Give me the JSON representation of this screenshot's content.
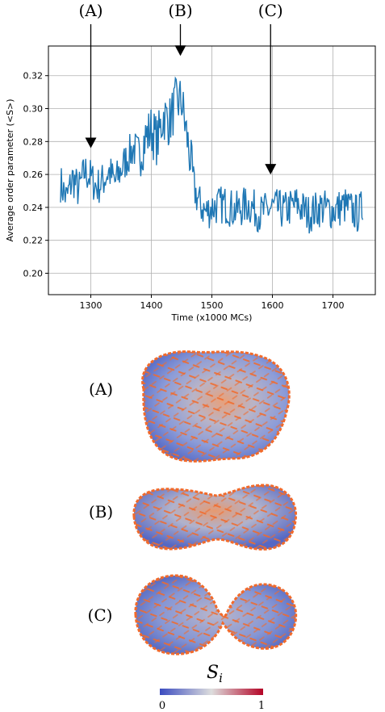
{
  "chart_data": {
    "type": "line",
    "xlabel": "Time (x1000 MCs)",
    "ylabel": "Average order parameter (<S>)",
    "xlim": [
      1230,
      1770
    ],
    "ylim": [
      0.187,
      0.338
    ],
    "xticks": [
      1300,
      1400,
      1500,
      1600,
      1700
    ],
    "yticks": [
      0.2,
      0.22,
      0.24,
      0.26,
      0.28,
      0.3,
      0.32
    ],
    "grid": true,
    "series": [
      {
        "color": "#1f77b4",
        "keypoints": [
          [
            1250,
            0.255
          ],
          [
            1260,
            0.245
          ],
          [
            1270,
            0.258
          ],
          [
            1280,
            0.25
          ],
          [
            1290,
            0.262
          ],
          [
            1300,
            0.258
          ],
          [
            1310,
            0.252
          ],
          [
            1320,
            0.256
          ],
          [
            1330,
            0.262
          ],
          [
            1340,
            0.255
          ],
          [
            1350,
            0.263
          ],
          [
            1360,
            0.27
          ],
          [
            1370,
            0.276
          ],
          [
            1380,
            0.272
          ],
          [
            1390,
            0.282
          ],
          [
            1400,
            0.287
          ],
          [
            1410,
            0.28
          ],
          [
            1420,
            0.296
          ],
          [
            1430,
            0.292
          ],
          [
            1440,
            0.303
          ],
          [
            1450,
            0.305
          ],
          [
            1455,
            0.292
          ],
          [
            1460,
            0.28
          ],
          [
            1465,
            0.268
          ],
          [
            1470,
            0.252
          ],
          [
            1480,
            0.242
          ],
          [
            1490,
            0.237
          ],
          [
            1500,
            0.24
          ],
          [
            1520,
            0.242
          ],
          [
            1540,
            0.238
          ],
          [
            1560,
            0.242
          ],
          [
            1580,
            0.236
          ],
          [
            1600,
            0.24
          ],
          [
            1620,
            0.238
          ],
          [
            1640,
            0.242
          ],
          [
            1660,
            0.236
          ],
          [
            1680,
            0.24
          ],
          [
            1700,
            0.238
          ],
          [
            1720,
            0.241
          ],
          [
            1740,
            0.236
          ],
          [
            1750,
            0.24
          ]
        ]
      }
    ],
    "markers": [
      {
        "label": "(A)",
        "x": 1300,
        "y": 0.276
      },
      {
        "label": "(B)",
        "x": 1448,
        "y": 0.332
      },
      {
        "label": "(C)",
        "x": 1597,
        "y": 0.26
      }
    ]
  },
  "shapes": [
    {
      "label": "(A)"
    },
    {
      "label": "(B)"
    },
    {
      "label": "(C)"
    }
  ],
  "colorbar": {
    "title": "S_i",
    "min_label": "0",
    "max_label": "1",
    "colors": [
      "#3b4cc0",
      "#dddddd",
      "#b40426"
    ]
  }
}
